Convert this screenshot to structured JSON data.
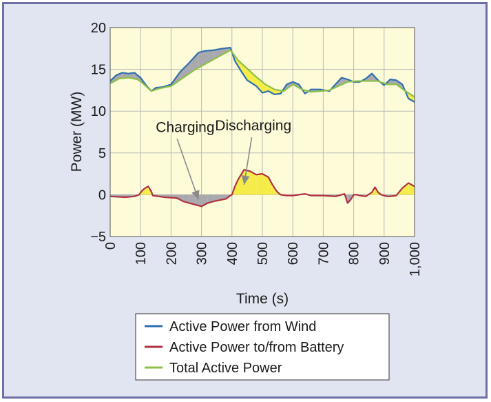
{
  "chart_data": {
    "type": "line",
    "xlabel": "Time (s)",
    "ylabel": "Power (MW)",
    "xlim": [
      0,
      1000
    ],
    "ylim": [
      -5,
      20
    ],
    "x_ticks": [
      0,
      100,
      200,
      300,
      400,
      500,
      600,
      700,
      800,
      900,
      1000
    ],
    "x_tick_labels": [
      "0",
      "100",
      "200",
      "300",
      "400",
      "500",
      "600",
      "700",
      "800",
      "900",
      "1,000"
    ],
    "y_ticks": [
      -5,
      0,
      5,
      10,
      15,
      20
    ],
    "y_tick_labels": [
      "−5",
      "0",
      "5",
      "10",
      "15",
      "20"
    ],
    "grid": true,
    "legend_position": "bottom-center",
    "annotations": [
      {
        "text": "Charging",
        "x": 150,
        "y": 7.5,
        "arrow_to": [
          290,
          -0.6
        ]
      },
      {
        "text": "Discharging",
        "x": 470,
        "y": 7.7,
        "arrow_to": [
          440,
          1.2
        ]
      }
    ],
    "series": [
      {
        "name": "Active Power from Wind",
        "color": "#2e6fb0",
        "x": [
          0,
          20,
          40,
          60,
          80,
          100,
          120,
          135,
          150,
          175,
          200,
          230,
          260,
          290,
          310,
          340,
          370,
          395,
          410,
          430,
          450,
          480,
          500,
          520,
          540,
          560,
          580,
          600,
          620,
          640,
          660,
          690,
          720,
          740,
          760,
          780,
          800,
          820,
          840,
          860,
          880,
          900,
          920,
          940,
          960,
          980,
          1000
        ],
        "y": [
          13.6,
          14.3,
          14.6,
          14.5,
          14.6,
          14.0,
          13.0,
          12.4,
          12.8,
          12.9,
          13.2,
          14.7,
          15.8,
          17.0,
          17.2,
          17.3,
          17.5,
          17.6,
          16.0,
          14.8,
          13.7,
          13.0,
          12.2,
          12.4,
          12.0,
          12.1,
          13.2,
          13.5,
          13.2,
          12.1,
          12.6,
          12.6,
          12.4,
          13.2,
          14.0,
          13.8,
          13.5,
          13.5,
          13.9,
          14.5,
          13.7,
          13.1,
          13.8,
          13.7,
          13.2,
          11.5,
          11.1
        ]
      },
      {
        "name": "Active Power to/from Battery",
        "color": "#b03040",
        "x": [
          0,
          50,
          80,
          95,
          105,
          115,
          125,
          135,
          140,
          180,
          220,
          240,
          260,
          280,
          300,
          320,
          340,
          380,
          395,
          400,
          410,
          420,
          440,
          460,
          480,
          500,
          520,
          530,
          540,
          550,
          560,
          580,
          600,
          620,
          640,
          660,
          700,
          740,
          760,
          770,
          780,
          790,
          800,
          810,
          820,
          840,
          860,
          870,
          880,
          890,
          900,
          910,
          920,
          940,
          960,
          980,
          1000
        ],
        "y": [
          -0.2,
          -0.3,
          -0.2,
          0.0,
          0.5,
          0.8,
          1.0,
          0.4,
          -0.1,
          -0.3,
          -0.4,
          -0.8,
          -1.0,
          -1.2,
          -1.4,
          -1.0,
          -0.8,
          -0.5,
          -0.1,
          0.0,
          1.0,
          1.8,
          3.0,
          2.8,
          2.4,
          2.5,
          2.1,
          1.4,
          0.8,
          0.3,
          0.0,
          -0.1,
          -0.1,
          0.0,
          0.1,
          -0.1,
          -0.1,
          -0.2,
          0.0,
          0.1,
          -1.0,
          -0.6,
          0.0,
          0.0,
          -0.1,
          -0.2,
          0.3,
          0.9,
          0.3,
          0.0,
          -0.1,
          -0.2,
          -0.2,
          -0.1,
          0.8,
          1.4,
          1.0
        ]
      },
      {
        "name": "Total Active Power",
        "color": "#8cc04a",
        "x": [
          0,
          30,
          60,
          90,
          105,
          120,
          135,
          160,
          200,
          240,
          280,
          320,
          360,
          395,
          420,
          450,
          480,
          510,
          540,
          570,
          600,
          630,
          660,
          690,
          720,
          750,
          780,
          810,
          850,
          880,
          910,
          940,
          970,
          1000
        ],
        "y": [
          13.3,
          13.9,
          14.0,
          13.8,
          13.4,
          12.9,
          12.4,
          12.7,
          13.0,
          14.0,
          15.0,
          15.8,
          16.6,
          17.3,
          16.1,
          15.1,
          14.1,
          13.2,
          12.6,
          12.4,
          13.2,
          12.6,
          12.3,
          12.4,
          12.5,
          13.0,
          13.5,
          13.6,
          13.6,
          13.6,
          13.2,
          13.2,
          12.4,
          11.7
        ]
      }
    ]
  }
}
